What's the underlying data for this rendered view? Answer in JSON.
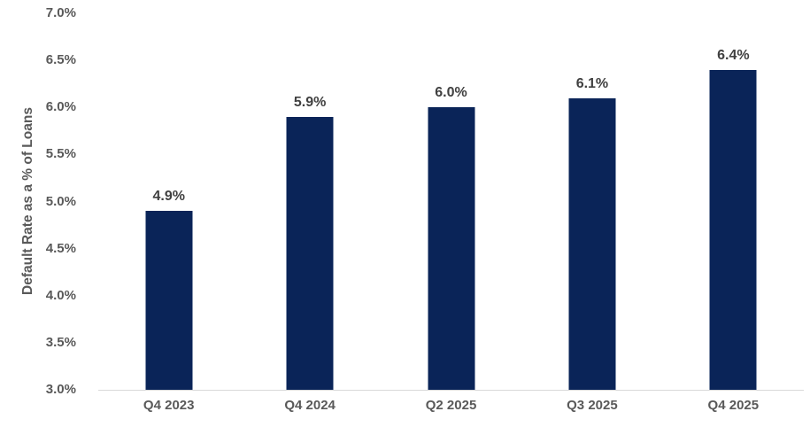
{
  "chart_data": {
    "type": "bar",
    "title": "",
    "xlabel": "",
    "ylabel": "Default Rate as a % of Loans",
    "categories": [
      "Q4 2023",
      "Q4 2024",
      "Q2 2025",
      "Q3 2025",
      "Q4 2025"
    ],
    "values": [
      4.9,
      5.9,
      6.0,
      6.1,
      6.4
    ],
    "data_labels": [
      "4.9%",
      "5.9%",
      "6.0%",
      "6.1%",
      "6.4%"
    ],
    "ylim": [
      3.0,
      7.0
    ],
    "ytick_step": 0.5,
    "yticks": [
      "3.0%",
      "3.5%",
      "4.0%",
      "4.5%",
      "5.0%",
      "5.5%",
      "6.0%",
      "6.5%",
      "7.0%"
    ],
    "grid": false,
    "legend": false,
    "colors": {
      "bar": "#0a2458",
      "data_label": "#404040",
      "axis_text": "#595959",
      "axis_line": "#d9d9d9",
      "background": "#ffffff"
    }
  }
}
